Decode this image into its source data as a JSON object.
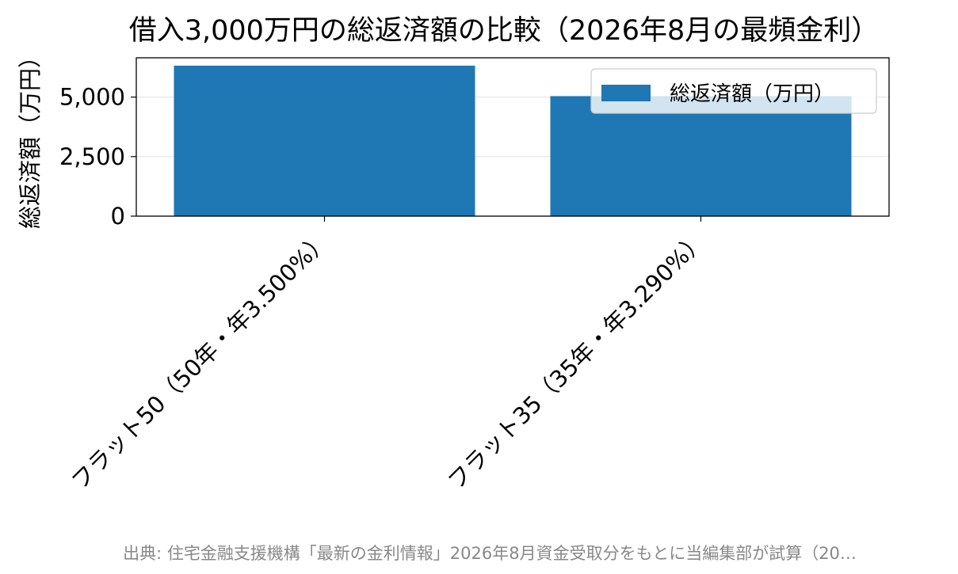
{
  "chart_data": {
    "type": "bar",
    "title": "借入3,000万円の総返済額の比較（2026年8月の最頻金利）",
    "xlabel": "",
    "ylabel": "総返済額（万円）",
    "categories": [
      "フラット50（50年・年3.500%）",
      "フラット35（35年・年3.290%）"
    ],
    "series": [
      {
        "name": "総返済額（万円）",
        "values": [
          6320,
          5040
        ],
        "color": "#1f77b4"
      }
    ],
    "ylim": [
      0,
      6650
    ],
    "yticks": [
      0,
      2500,
      5000
    ],
    "ytick_labels": [
      "0",
      "2,500",
      "5,000"
    ],
    "grid": "horizontal",
    "legend_placement": "top-right"
  },
  "footer": {
    "source": "出典: 住宅金融支援機構「最新の金利情報」2026年8月資金受取分をもとに当編集部が試算（20…"
  }
}
